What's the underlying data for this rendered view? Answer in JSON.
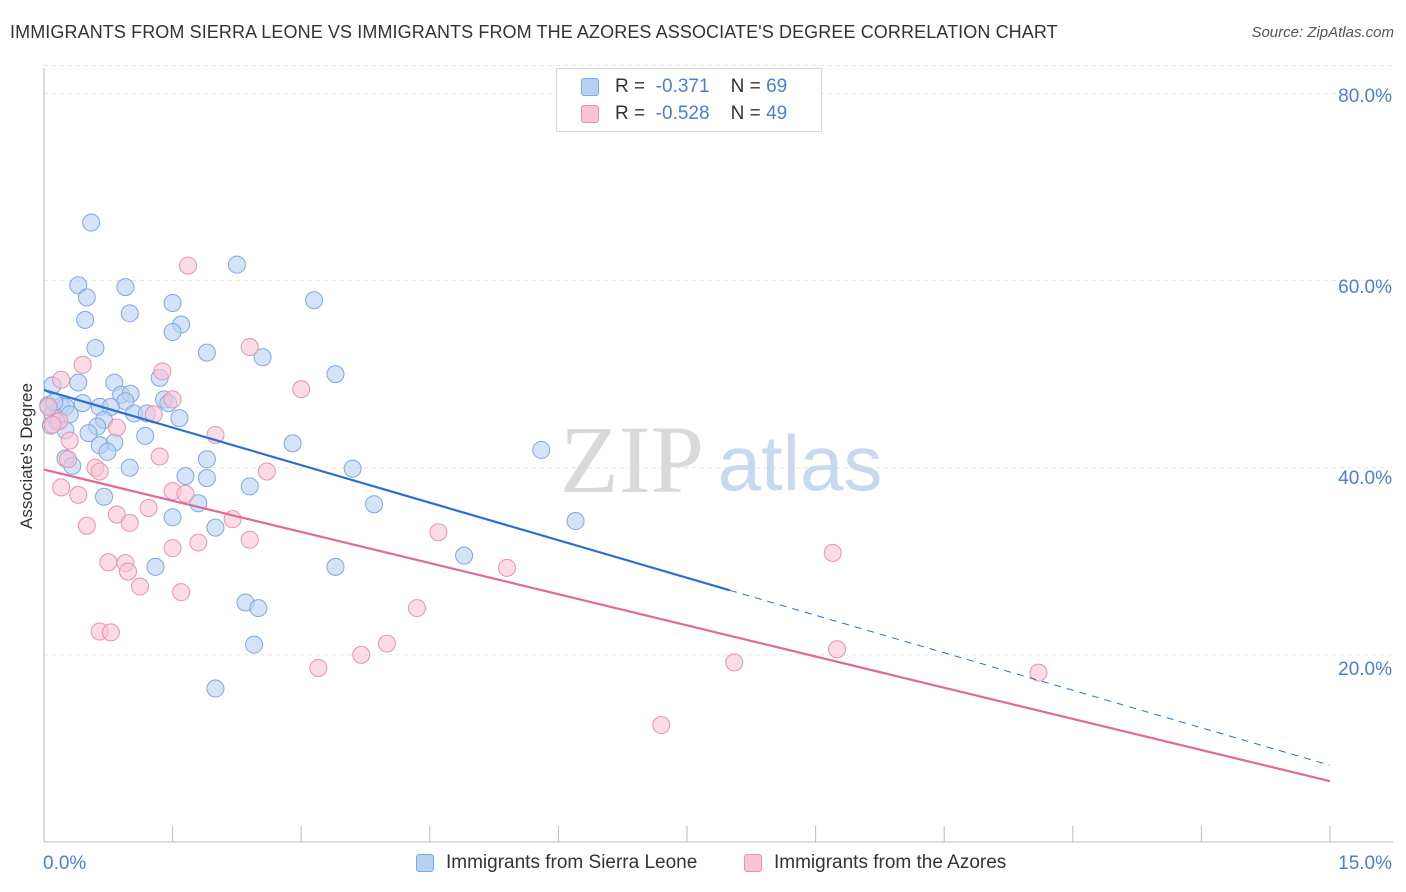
{
  "title": "IMMIGRANTS FROM SIERRA LEONE VS IMMIGRANTS FROM THE AZORES ASSOCIATE'S DEGREE CORRELATION CHART",
  "source": "Source: ZipAtlas.com",
  "watermark": {
    "zip": "ZIP",
    "atlas": "atlas"
  },
  "legend": {
    "r_label": "R =",
    "n_label": "N =",
    "series1": {
      "r": "-0.371",
      "n": "69"
    },
    "series2": {
      "r": "-0.528",
      "n": "49"
    }
  },
  "colors": {
    "series1_fill": "#b7d1f3",
    "series1_stroke": "#7ea8e0",
    "series1_line": "#2b6fd1",
    "series2_fill": "#f8c3d3",
    "series2_stroke": "#eb92ae",
    "series2_line": "#e0689a",
    "tick_text": "#4a7fd1"
  },
  "chart_data": {
    "type": "scatter",
    "ylabel": "Associate's Degree",
    "x_ticks": [
      "0.0%",
      "15.0%"
    ],
    "y_ticks": [
      "80.0%",
      "60.0%",
      "40.0%",
      "20.0%"
    ],
    "xlim": [
      0,
      15
    ],
    "ylim": [
      0,
      84
    ],
    "grid": "horizontal dashed",
    "legend_position": "top-center",
    "series": [
      {
        "name": "Immigrants from Sierra Leone",
        "r": -0.371,
        "n": 69,
        "trend": {
          "x0": 0,
          "y0": 48.3,
          "x1": 8.0,
          "y1": 26.9,
          "dashed_to_x": 15.0,
          "dashed_to_y": 8.2
        },
        "points": [
          [
            0.55,
            66.2
          ],
          [
            0.4,
            59.5
          ],
          [
            0.95,
            59.3
          ],
          [
            0.5,
            58.2
          ],
          [
            2.25,
            61.7
          ],
          [
            3.15,
            57.9
          ],
          [
            1.5,
            57.6
          ],
          [
            1.0,
            56.5
          ],
          [
            1.6,
            55.3
          ],
          [
            0.48,
            55.8
          ],
          [
            1.5,
            54.5
          ],
          [
            0.6,
            52.8
          ],
          [
            1.9,
            52.3
          ],
          [
            2.55,
            51.8
          ],
          [
            3.4,
            50.0
          ],
          [
            1.35,
            49.6
          ],
          [
            0.1,
            48.8
          ],
          [
            0.4,
            49.1
          ],
          [
            0.82,
            49.1
          ],
          [
            0.9,
            47.8
          ],
          [
            1.01,
            47.9
          ],
          [
            1.4,
            47.3
          ],
          [
            0.95,
            47.1
          ],
          [
            0.05,
            46.7
          ],
          [
            0.2,
            46.6
          ],
          [
            0.25,
            46.5
          ],
          [
            0.65,
            46.5
          ],
          [
            0.45,
            46.9
          ],
          [
            0.78,
            46.5
          ],
          [
            0.1,
            45.7
          ],
          [
            0.3,
            45.7
          ],
          [
            1.05,
            45.8
          ],
          [
            1.2,
            45.8
          ],
          [
            0.7,
            45.1
          ],
          [
            1.58,
            45.3
          ],
          [
            0.15,
            44.9
          ],
          [
            0.62,
            44.4
          ],
          [
            0.25,
            44.0
          ],
          [
            0.52,
            43.7
          ],
          [
            1.18,
            43.4
          ],
          [
            0.82,
            42.7
          ],
          [
            0.65,
            42.4
          ],
          [
            2.9,
            42.6
          ],
          [
            5.8,
            41.9
          ],
          [
            0.25,
            41.0
          ],
          [
            0.33,
            40.2
          ],
          [
            0.74,
            41.7
          ],
          [
            1.0,
            40.0
          ],
          [
            1.9,
            40.9
          ],
          [
            3.6,
            39.9
          ],
          [
            1.65,
            39.1
          ],
          [
            1.9,
            38.9
          ],
          [
            2.4,
            38.0
          ],
          [
            0.7,
            36.9
          ],
          [
            1.8,
            36.2
          ],
          [
            3.85,
            36.1
          ],
          [
            1.5,
            34.7
          ],
          [
            2.0,
            33.6
          ],
          [
            6.2,
            34.3
          ],
          [
            4.9,
            30.6
          ],
          [
            1.3,
            29.4
          ],
          [
            3.4,
            29.4
          ],
          [
            2.35,
            25.6
          ],
          [
            2.5,
            25.0
          ],
          [
            2.45,
            21.1
          ],
          [
            2.0,
            16.4
          ],
          [
            0.12,
            47.0
          ],
          [
            0.08,
            44.5
          ],
          [
            1.45,
            46.9
          ]
        ]
      },
      {
        "name": "Immigrants from the Azores",
        "r": -0.528,
        "n": 49,
        "trend": {
          "x0": 0,
          "y0": 39.8,
          "x1": 15.0,
          "y1": 6.5
        },
        "points": [
          [
            1.68,
            61.6
          ],
          [
            2.4,
            52.9
          ],
          [
            0.45,
            51.0
          ],
          [
            1.38,
            50.3
          ],
          [
            0.2,
            49.4
          ],
          [
            3.0,
            48.4
          ],
          [
            1.5,
            47.3
          ],
          [
            0.05,
            46.5
          ],
          [
            1.28,
            45.7
          ],
          [
            0.18,
            45.0
          ],
          [
            0.1,
            44.6
          ],
          [
            0.85,
            44.3
          ],
          [
            2.0,
            43.5
          ],
          [
            0.3,
            42.9
          ],
          [
            1.35,
            41.2
          ],
          [
            0.28,
            40.9
          ],
          [
            0.6,
            40.0
          ],
          [
            0.65,
            39.6
          ],
          [
            2.6,
            39.6
          ],
          [
            0.2,
            37.9
          ],
          [
            1.5,
            37.5
          ],
          [
            1.65,
            37.2
          ],
          [
            0.4,
            37.1
          ],
          [
            1.22,
            35.7
          ],
          [
            0.85,
            35.0
          ],
          [
            2.2,
            34.5
          ],
          [
            1.0,
            34.1
          ],
          [
            0.5,
            33.8
          ],
          [
            4.6,
            33.1
          ],
          [
            2.4,
            32.3
          ],
          [
            1.8,
            32.0
          ],
          [
            1.5,
            31.4
          ],
          [
            9.2,
            30.9
          ],
          [
            0.75,
            29.9
          ],
          [
            0.95,
            29.8
          ],
          [
            0.98,
            28.9
          ],
          [
            5.4,
            29.3
          ],
          [
            1.12,
            27.3
          ],
          [
            1.6,
            26.7
          ],
          [
            4.35,
            25.0
          ],
          [
            0.65,
            22.5
          ],
          [
            0.78,
            22.4
          ],
          [
            4.0,
            21.2
          ],
          [
            3.7,
            20.0
          ],
          [
            3.2,
            18.6
          ],
          [
            9.25,
            20.6
          ],
          [
            8.05,
            19.2
          ],
          [
            11.6,
            18.1
          ],
          [
            7.2,
            12.5
          ]
        ]
      }
    ]
  },
  "bottom_legend": [
    "Immigrants from Sierra Leone",
    "Immigrants from the Azores"
  ]
}
